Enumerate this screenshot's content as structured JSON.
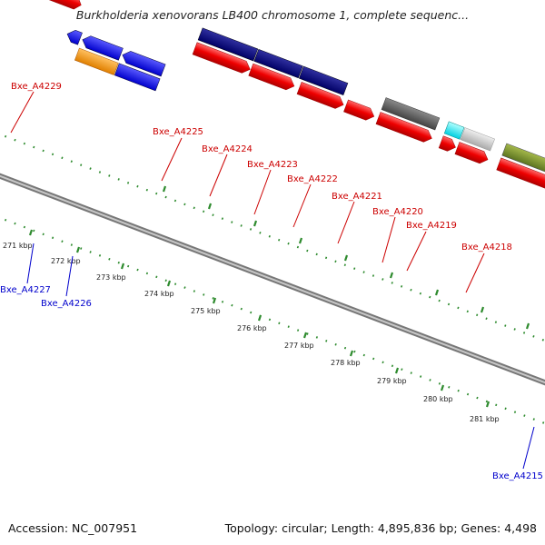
{
  "header": {
    "title": "Burkholderia xenovorans LB400 chromosome 1, complete sequenc..."
  },
  "footer": {
    "accession": "Accession: NC_007951",
    "summary": "Topology: circular; Length: 4,895,836 bp; Genes: 4,498"
  },
  "colors": {
    "label_forward": "#cc0000",
    "label_reverse": "#0000cc",
    "backbone": "#8c8c8c",
    "tick": "#2e8b2e"
  },
  "scale": {
    "ticks": [
      "271 kbp",
      "272 kbp",
      "273 kbp",
      "274 kbp",
      "275 kbp",
      "276 kbp",
      "277 kbp",
      "278 kbp",
      "279 kbp",
      "280 kbp",
      "281 kbp"
    ]
  },
  "gene_labels": {
    "forward": [
      "Bxe_A4229",
      "Bxe_A4225",
      "Bxe_A4224",
      "Bxe_A4223",
      "Bxe_A4222",
      "Bxe_A4221",
      "Bxe_A4220",
      "Bxe_A4219",
      "Bxe_A4218"
    ],
    "reverse": [
      "Bxe_A4227",
      "Bxe_A4226",
      "Bxe_A4215"
    ]
  },
  "features": {
    "forward_cog_colors": [
      "olive",
      "navy",
      "navy",
      "navy",
      "gray",
      "cyan",
      "silver",
      "olive",
      "blue",
      "dimgray"
    ],
    "reverse_cog_colors": [
      "blue",
      "blue",
      "blue",
      "orange",
      "blue",
      "blue"
    ]
  }
}
